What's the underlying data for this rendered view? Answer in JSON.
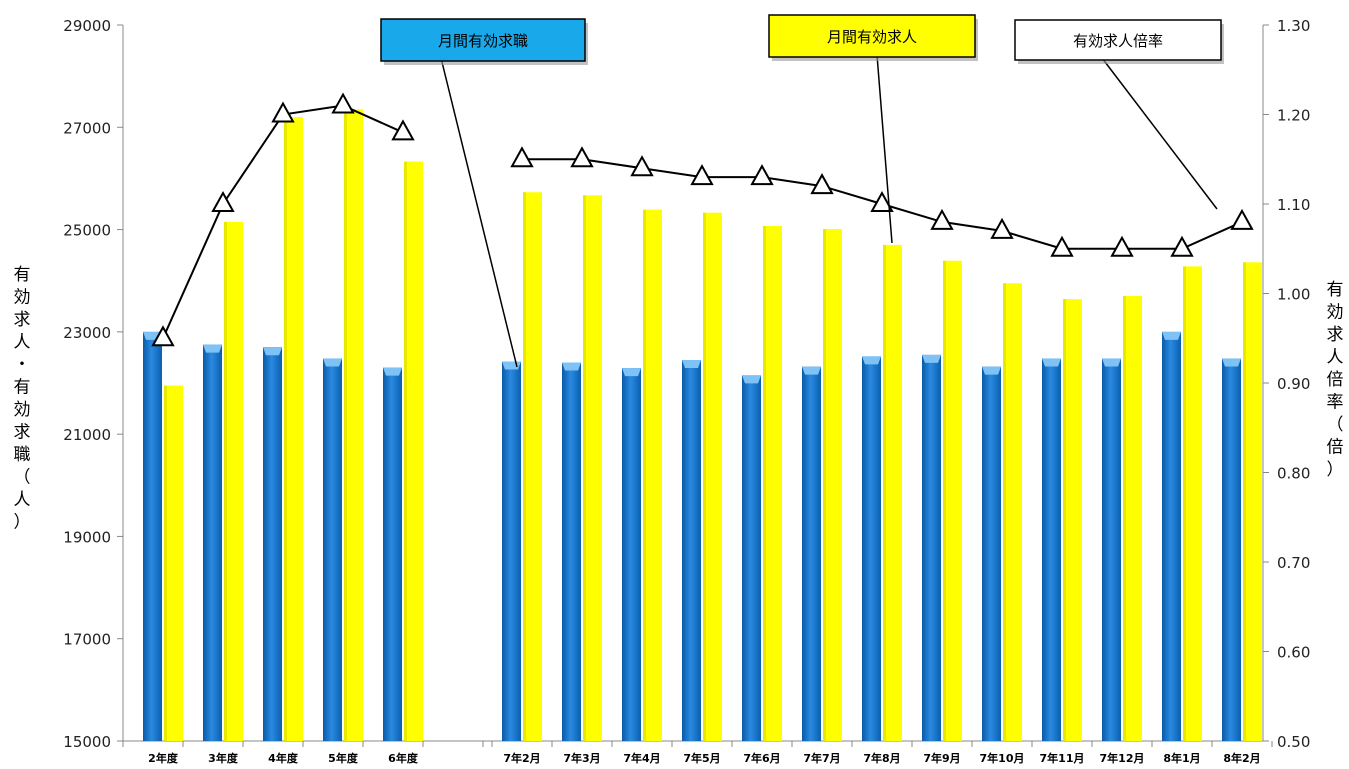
{
  "chart_data": {
    "type": "bar",
    "categories": [
      "2年度",
      "3年度",
      "4年度",
      "5年度",
      "6年度",
      "7年2月",
      "7年3月",
      "7年4月",
      "7年5月",
      "7年6月",
      "7年7月",
      "7年8月",
      "7年9月",
      "7年10月",
      "7年11月",
      "7年12月",
      "8年1月",
      "8年2月"
    ],
    "series": [
      {
        "name": "月間有効求職",
        "type": "bar",
        "axis": "left",
        "color": "#1a78d0",
        "values": [
          23000,
          22750,
          22700,
          22480,
          22300,
          22420,
          22400,
          22290,
          22450,
          22150,
          22320,
          22520,
          22550,
          22320,
          22480,
          22480,
          23000,
          22480
        ]
      },
      {
        "name": "月間有効求人",
        "type": "bar",
        "axis": "left",
        "color": "#ffff00",
        "values": [
          21950,
          25150,
          27200,
          27350,
          26330,
          25730,
          25670,
          25390,
          25330,
          25070,
          25010,
          24700,
          24390,
          23950,
          23640,
          23700,
          24280,
          24360
        ]
      },
      {
        "name": "有効求人倍率",
        "type": "line",
        "axis": "right",
        "marker": "triangle",
        "values": [
          0.95,
          1.1,
          1.2,
          1.21,
          1.18,
          1.15,
          1.15,
          1.14,
          1.13,
          1.13,
          1.12,
          1.1,
          1.08,
          1.07,
          1.05,
          1.05,
          1.05,
          1.08
        ]
      }
    ],
    "y_left": {
      "label": "有効求人・有効求職（人）",
      "min": 15000,
      "max": 29000,
      "ticks": [
        "15000",
        "17000",
        "19000",
        "21000",
        "23000",
        "25000",
        "27000",
        "29000"
      ]
    },
    "y_right": {
      "label": "有効求人倍率（倍）",
      "min": 0.5,
      "max": 1.3,
      "ticks": [
        "0.50",
        "0.60",
        "0.70",
        "0.80",
        "0.90",
        "1.00",
        "1.10",
        "1.20",
        "1.30"
      ]
    },
    "legend": [
      "月間有効求職",
      "月間有効求人",
      "有効求人倍率"
    ],
    "grid": false
  }
}
